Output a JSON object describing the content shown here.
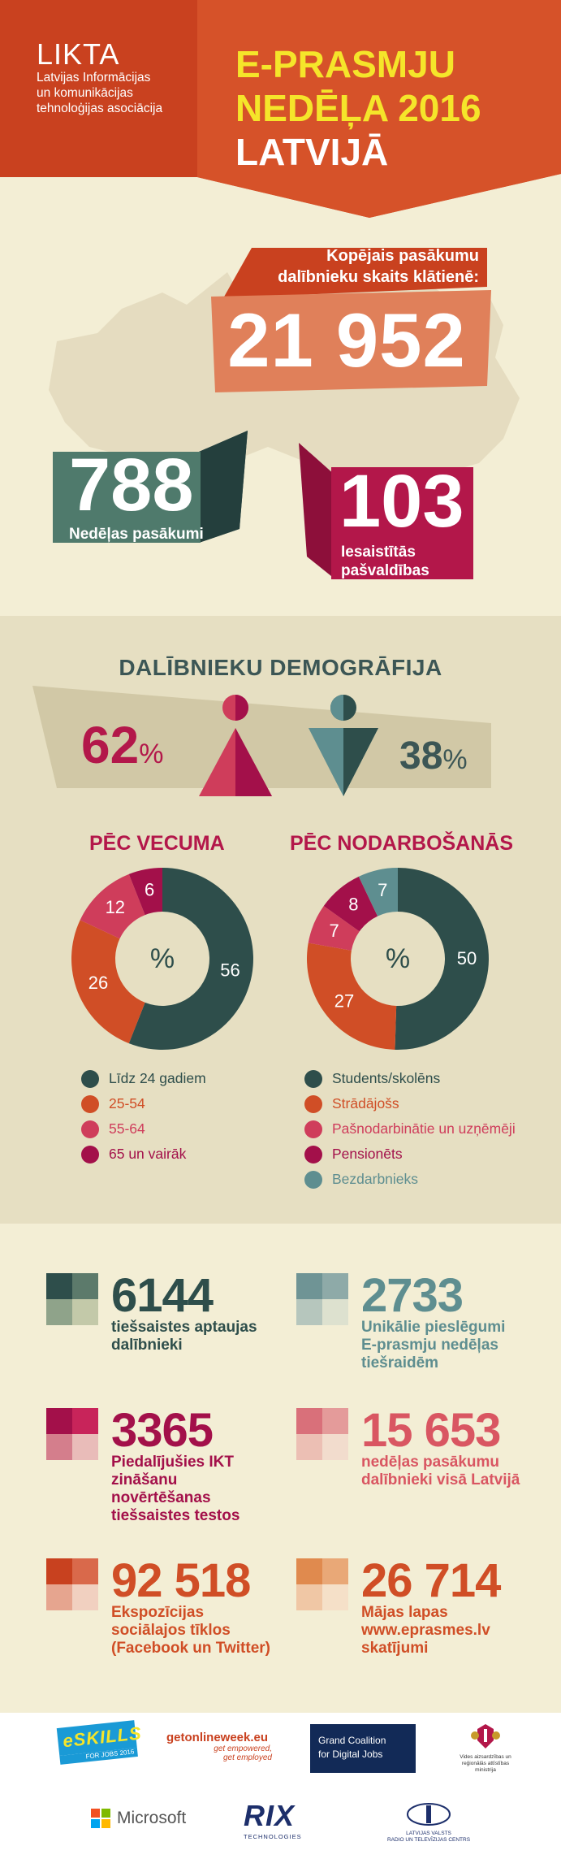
{
  "header": {
    "org_name": "LIKTA",
    "org_full_1": "Latvijas Informācijas",
    "org_full_2": "un komunikācijas",
    "org_full_3": "tehnoloģijas asociācija",
    "title_1": "E-PRASMJU",
    "title_2": "NEDĒĻA 2016",
    "title_3": "LATVIJĀ"
  },
  "hero": {
    "participants_label_1": "Kopējais pasākumu",
    "participants_label_2": "dalībnieku skaits klātienē:",
    "participants_value": "21 952",
    "events_value": "788",
    "events_label": "Nedēļas pasākumi",
    "municipalities_value": "103",
    "municipalities_label_1": "Iesaistītās",
    "municipalities_label_2": "pašvaldības"
  },
  "demographics": {
    "title": "DALĪBNIEKU DEMOGRĀFIJA",
    "female_pct": "62",
    "male_pct": "38",
    "pct_unit": "%"
  },
  "age": {
    "title": "PĒC VECUMA",
    "center": "%",
    "slices": [
      {
        "label": "Līdz 24 gadiem",
        "value": 56,
        "color": "#2e4e4b"
      },
      {
        "label": "25-54",
        "value": 26,
        "color": "#d04e26"
      },
      {
        "label": "55-64",
        "value": 12,
        "color": "#cf3d5b"
      },
      {
        "label": "65 un vairāk",
        "value": 6,
        "color": "#a3104a"
      }
    ]
  },
  "occupation": {
    "title": "PĒC NODARBOŠANĀS",
    "center": "%",
    "slices": [
      {
        "label": "Students/skolēns",
        "value": 50,
        "color": "#2e4e4b"
      },
      {
        "label": "Strādājošs",
        "value": 27,
        "color": "#d04e26"
      },
      {
        "label": "Pašnodarbinātie un uzņēmēji",
        "value": 7,
        "color": "#cf3d5b"
      },
      {
        "label": "Pensionēts",
        "value": 8,
        "color": "#a3104a"
      },
      {
        "label": "Bezdarbnieks",
        "value": 7,
        "color": "#5e8e90"
      }
    ]
  },
  "stats": [
    {
      "value": "6144",
      "label": "tiešsaistes aptaujas dalībnieki",
      "color": "#2e4e4b",
      "squares": [
        "#2e4e4b",
        "#5c7a6b",
        "#8fa38a",
        "#c3c9a9"
      ]
    },
    {
      "value": "2733",
      "label": "Unikālie pieslēgumi E-prasmju nedēļas tiešraidēm",
      "color": "#5e8e90",
      "squares": [
        "#6f9495",
        "#8eaaa8",
        "#b6c6bd",
        "#dde1cf"
      ]
    },
    {
      "value": "3365",
      "label": "Piedalījušies IKT zināšanu novērtēšanas tiešsaistes testos",
      "color": "#a3104a",
      "squares": [
        "#a3104a",
        "#c8245a",
        "#d47e8c",
        "#e9bcb9"
      ]
    },
    {
      "value": "15 653",
      "label": "nedēļas pasākumu dalībnieki visā Latvijā",
      "color": "#d95662",
      "squares": [
        "#d9707a",
        "#e49b9a",
        "#ecbfb4",
        "#f2dccd"
      ]
    },
    {
      "value": "92 518",
      "label": "Ekspozīcijas sociālajos tīklos (Facebook un Twitter)",
      "color": "#d04e26",
      "squares": [
        "#c8411f",
        "#d9694b",
        "#e6a58f",
        "#f1d0c0"
      ]
    },
    {
      "value": "26 714",
      "label": "Mājas lapas www.eprasmes.lv skatījumi",
      "color": "#d04e26",
      "squares": [
        "#e08a4e",
        "#e9a877",
        "#f0c7a5",
        "#f5e0c8"
      ]
    }
  ],
  "logos": {
    "eskills_1": "eSKILLS",
    "eskills_2": "FOR JOBS 2016",
    "getonline_1": "getonlineweek.eu",
    "getonline_2": "get empowered,",
    "getonline_3": "get employed",
    "grand_coalition_1": "Grand Coalition",
    "grand_coalition_2": "for Digital Jobs",
    "ministry_1": "Vides aizsardzības un",
    "ministry_2": "reģionālās attīstības",
    "ministry_3": "ministrija",
    "microsoft": "Microsoft",
    "rix_1": "RIX",
    "rix_2": "TECHNOLOGIES",
    "lvrtc_1": "LATVIJAS VALSTS",
    "lvrtc_2": "RADIO UN TELEVĪZIJAS CENTRS"
  }
}
